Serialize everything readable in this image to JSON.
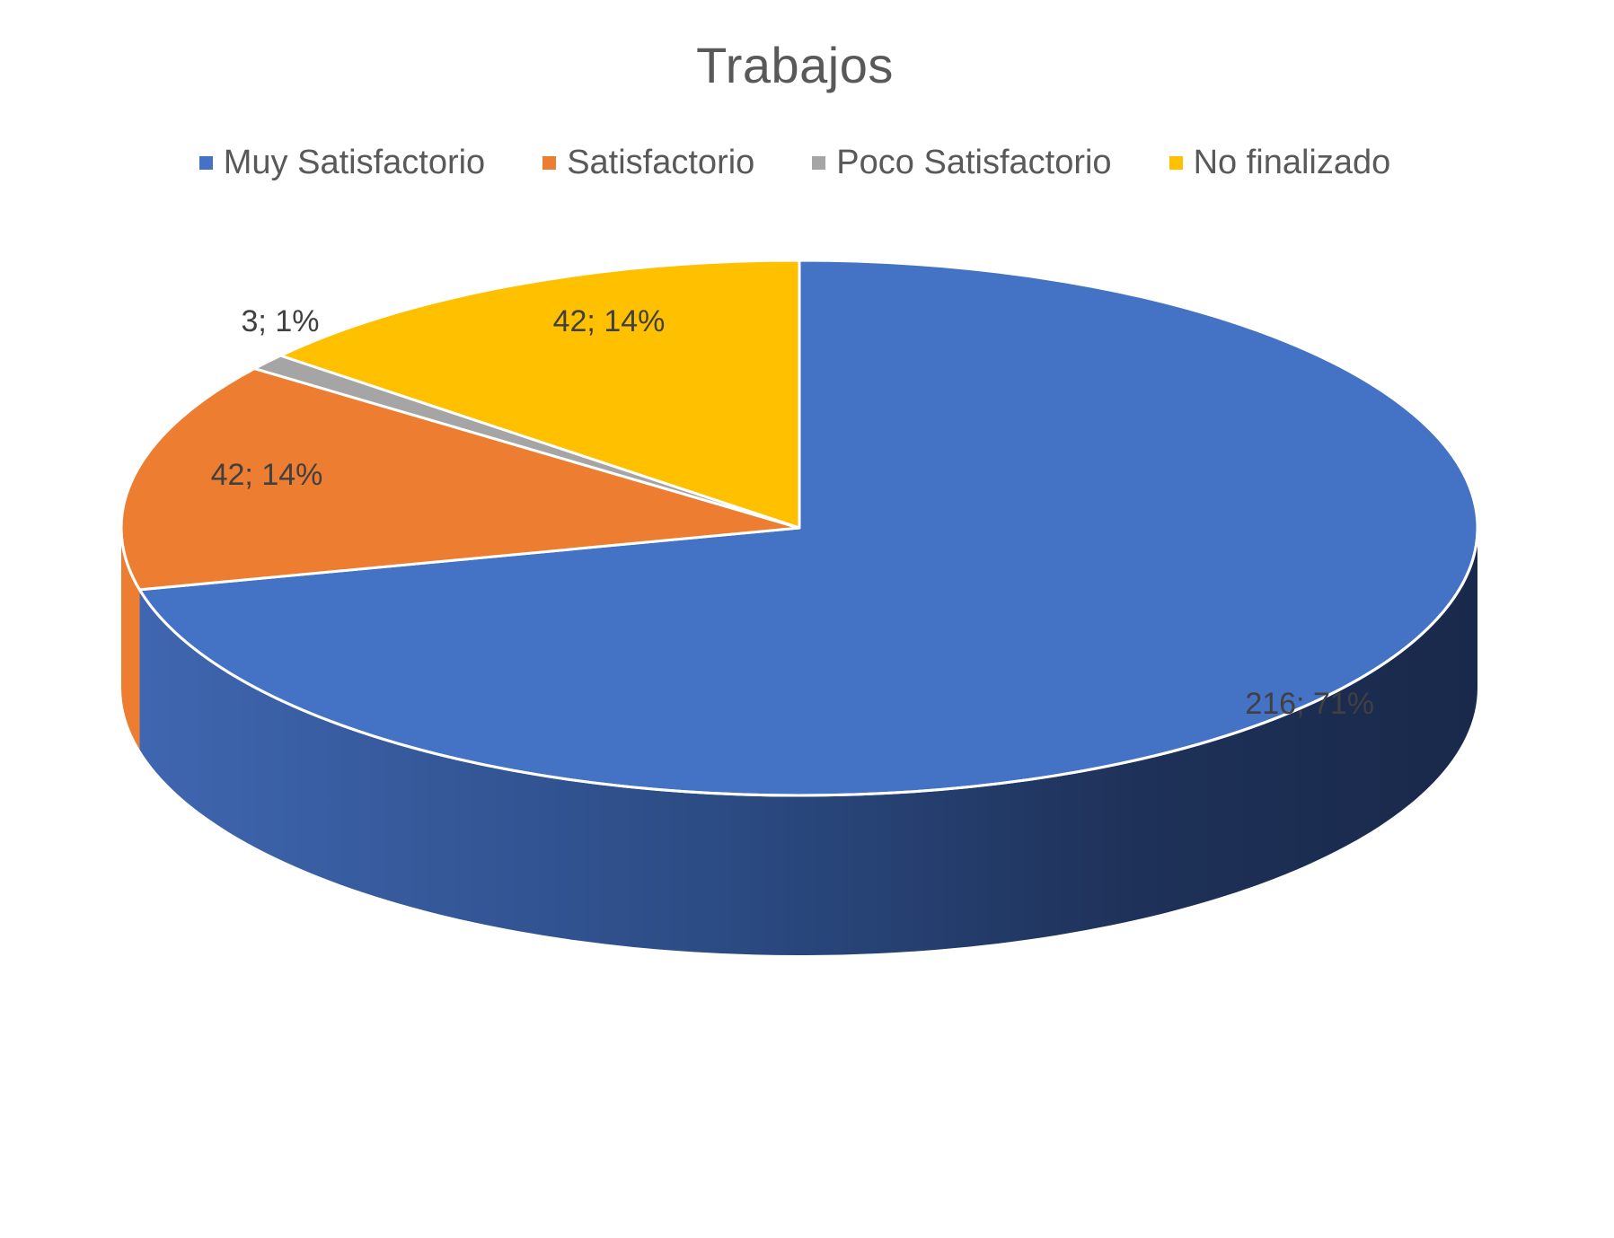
{
  "chart_data": {
    "type": "pie",
    "title": "Trabajos",
    "categories": [
      "Muy Satisfactorio",
      "Satisfactorio",
      "Poco Satisfactorio",
      "No finalizado"
    ],
    "values": [
      216,
      42,
      3,
      42
    ],
    "percentages": [
      "71%",
      "14%",
      "1%",
      "14%"
    ],
    "data_labels": [
      "216; 71%",
      "42; 14%",
      "3; 1%",
      "42; 14%"
    ],
    "colors": [
      "#4472C4",
      "#ED7D31",
      "#A5A5A5",
      "#FFC000"
    ],
    "legend_position": "top",
    "style": "3d"
  }
}
